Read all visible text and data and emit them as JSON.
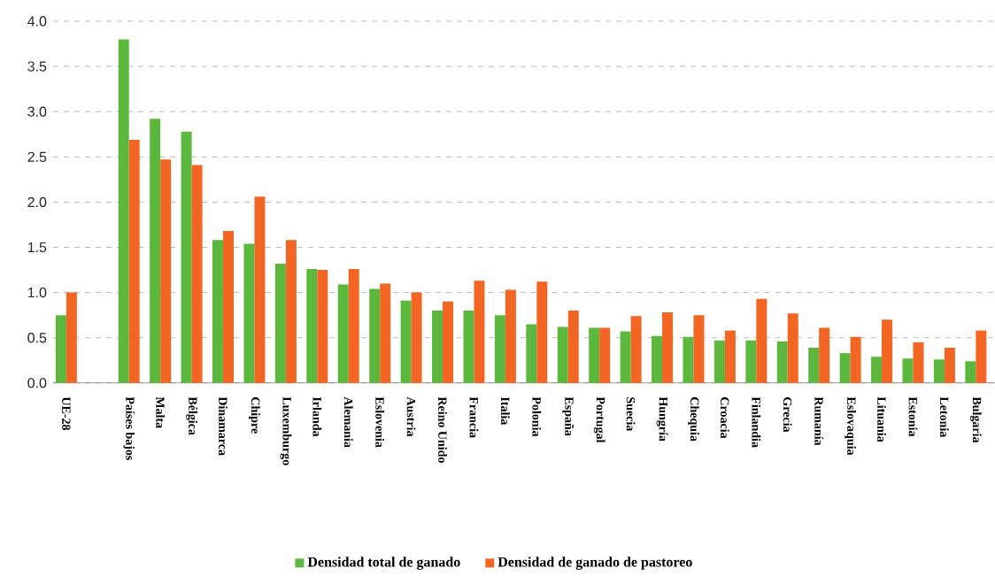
{
  "chart_data": {
    "type": "bar",
    "categories": [
      "UE-28",
      null,
      "Países bajos",
      "Malta",
      "Bélgica",
      "Dinamarca",
      "Chipre",
      "Luxemburgo",
      "Irlanda",
      "Alemania",
      "Eslovenia",
      "Austria",
      "Reino Unido",
      "Francia",
      "Italia",
      "Polonia",
      "España",
      "Portugal",
      "Suecia",
      "Hungría",
      "Chequia",
      "Croacia",
      "Finlandia",
      "Grecia",
      "Rumanía",
      "Eslovaquia",
      "Lituania",
      "Estonia",
      "Letonia",
      "Bulgaria"
    ],
    "series": [
      {
        "name": "Densidad total de ganado",
        "color": "#5cb83c",
        "values": [
          0.75,
          null,
          3.8,
          2.92,
          2.78,
          1.58,
          1.54,
          1.32,
          1.26,
          1.09,
          1.04,
          0.91,
          0.8,
          0.8,
          0.75,
          0.65,
          0.62,
          0.61,
          0.57,
          0.52,
          0.51,
          0.47,
          0.47,
          0.46,
          0.39,
          0.33,
          0.29,
          0.27,
          0.26,
          0.24
        ]
      },
      {
        "name": "Densidad de ganado de pastoreo",
        "color": "#f26522",
        "values": [
          1.0,
          null,
          2.69,
          2.47,
          2.41,
          1.68,
          2.06,
          1.58,
          1.25,
          1.26,
          1.1,
          1.0,
          0.9,
          1.13,
          1.03,
          1.12,
          0.8,
          0.61,
          0.74,
          0.78,
          0.75,
          0.58,
          0.93,
          0.77,
          0.61,
          0.51,
          0.7,
          0.45,
          0.39,
          0.58
        ]
      }
    ],
    "ylim": [
      0,
      4
    ],
    "yticks": [
      {
        "value": 0,
        "label": "0.0"
      },
      {
        "value": 0.5,
        "label": "0.5"
      },
      {
        "value": 1,
        "label": "1.0"
      },
      {
        "value": 1.5,
        "label": "1.5"
      },
      {
        "value": 2,
        "label": "2.0"
      },
      {
        "value": 2.5,
        "label": "2.5"
      },
      {
        "value": 3,
        "label": "3.0"
      },
      {
        "value": 3.5,
        "label": "3.5"
      },
      {
        "value": 4,
        "label": "4.0"
      }
    ],
    "grid": "y",
    "legend": "bottom"
  }
}
